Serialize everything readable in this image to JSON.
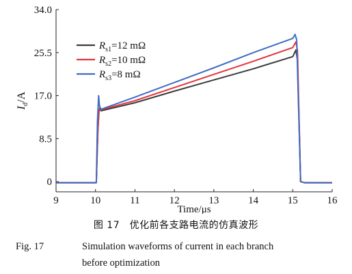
{
  "chart_data": {
    "type": "line",
    "xlabel": "Time/μs",
    "ylabel_main": "I",
    "ylabel_sub": "d",
    "ylabel_unit": "/A",
    "xlim": [
      9,
      16
    ],
    "ylim": [
      -2,
      34
    ],
    "xticks": [
      "9",
      "10",
      "11",
      "12",
      "13",
      "14",
      "15",
      "16"
    ],
    "yticks": [
      "0",
      "8.5",
      "17.0",
      "25.5",
      "34.0"
    ],
    "ytick_values": [
      0,
      8.5,
      17,
      25.5,
      34
    ],
    "xtick_values": [
      9,
      10,
      11,
      12,
      13,
      14,
      15,
      16
    ],
    "legend_position": "top-left",
    "grid": false,
    "series": [
      {
        "name_main": "R",
        "name_sub": "s1",
        "name_rest": "=12 mΩ",
        "color": "#3a3a3a",
        "x": [
          9.0,
          10.02,
          10.06,
          10.09,
          10.11,
          10.14,
          11,
          12,
          13,
          14,
          15.0,
          15.08,
          15.12,
          15.2,
          15.3,
          16
        ],
        "y": [
          -0.2,
          -0.2,
          10.0,
          14.0,
          14.5,
          14.0,
          15.6,
          17.9,
          20.1,
          22.3,
          24.7,
          26.0,
          24.0,
          0.0,
          -0.2,
          -0.2
        ]
      },
      {
        "name_main": "R",
        "name_sub": "s2",
        "name_rest": "=10 mΩ",
        "color": "#e2343c",
        "x": [
          9.0,
          10.02,
          10.06,
          10.09,
          10.11,
          10.14,
          11,
          12,
          13,
          14,
          15.0,
          15.08,
          15.12,
          15.2,
          15.3,
          16
        ],
        "y": [
          -0.2,
          -0.2,
          10.0,
          14.2,
          14.6,
          14.2,
          16.0,
          18.6,
          21.2,
          23.8,
          26.5,
          27.6,
          26.0,
          0.0,
          -0.2,
          -0.2
        ]
      },
      {
        "name_main": "R",
        "name_sub": "s3",
        "name_rest": "=8 mΩ",
        "color": "#3d6cc4",
        "x": [
          9.0,
          10.02,
          10.05,
          10.08,
          10.1,
          10.14,
          11,
          12,
          13,
          14,
          15.0,
          15.06,
          15.1,
          15.2,
          15.3,
          16
        ],
        "y": [
          -0.2,
          -0.2,
          12.0,
          17.0,
          15.0,
          14.3,
          16.7,
          19.6,
          22.5,
          25.5,
          28.3,
          29.1,
          28.0,
          0.0,
          -0.2,
          -0.2
        ]
      }
    ]
  },
  "caption": {
    "cn": "图 17　优化前各支路电流的仿真波形",
    "en_num": "Fig. 17",
    "en_line1": "Simulation waveforms of current in each branch",
    "en_line2": "before optimization"
  }
}
